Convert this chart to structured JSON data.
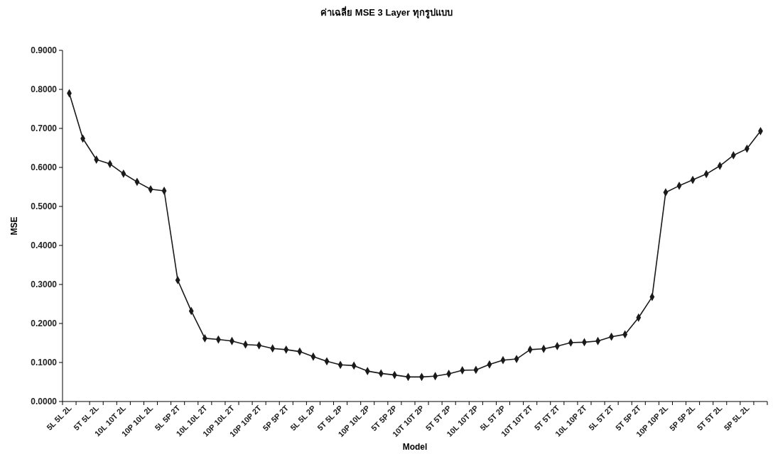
{
  "chart_data": {
    "type": "line",
    "title": "ค่าเฉลี่ย MSE 3 Layer ทุกรูปแบบ",
    "xlabel": "Model",
    "ylabel": "MSE",
    "categories": [
      "5L 5L 2L",
      null,
      "5T 5L 2L",
      null,
      "10L 10T 2L",
      null,
      "10P 10L 2L",
      null,
      "5L 5P 2T",
      null,
      "10L 10L 2T",
      null,
      "10P 10L 2T",
      null,
      "10P 10P 2T",
      null,
      "5P 5P 2T",
      null,
      "5L 5L 2P",
      null,
      "5T 5L 2P",
      null,
      "10P 10L 2P",
      null,
      "5T 5P 2P",
      null,
      "10T 10T 2P",
      null,
      "5T 5T 2P",
      null,
      "10L 10T 2P",
      null,
      "5L 5T 2P",
      null,
      "10T 10T 2T",
      null,
      "5T 5T 2T",
      null,
      "10L 10P 2T",
      null,
      "5L 5T 2T",
      null,
      "5T 5P 2T",
      null,
      "10P 10P 2L",
      null,
      "5P 5P 2L",
      null,
      "5T 5T 2L",
      null,
      "5P 5L 2L",
      null
    ],
    "series": [
      {
        "color": "#1a1a1a",
        "values": [
          0.79,
          0.674,
          0.62,
          0.609,
          0.584,
          0.563,
          0.544,
          0.54,
          0.311,
          0.232,
          0.162,
          0.159,
          0.155,
          0.146,
          0.144,
          0.136,
          0.133,
          0.128,
          0.115,
          0.103,
          0.094,
          0.092,
          0.078,
          0.072,
          0.068,
          0.063,
          0.063,
          0.065,
          0.071,
          0.08,
          0.081,
          0.095,
          0.106,
          0.109,
          0.133,
          0.135,
          0.142,
          0.151,
          0.152,
          0.155,
          0.166,
          0.172,
          0.215,
          0.268,
          0.536,
          0.553,
          0.568,
          0.583,
          0.604,
          0.631,
          0.648,
          0.693
        ]
      }
    ],
    "ylim": [
      0,
      0.9
    ],
    "yticks": [
      {
        "value": 0,
        "label": "0.0000"
      },
      {
        "value": 0.1,
        "label": "0.1000"
      },
      {
        "value": 0.2,
        "label": "0.2000"
      },
      {
        "value": 0.3,
        "label": "0.3000"
      },
      {
        "value": 0.4,
        "label": "0.4000"
      },
      {
        "value": 0.5,
        "label": "0.5000"
      },
      {
        "value": 0.6,
        "label": "0.6000"
      },
      {
        "value": 0.7,
        "label": "0.7000"
      },
      {
        "value": 0.8,
        "label": "0.8000"
      },
      {
        "value": 0.9,
        "label": "0.9000"
      }
    ],
    "grid": false,
    "marker": "diamond",
    "line_style": "solid"
  }
}
